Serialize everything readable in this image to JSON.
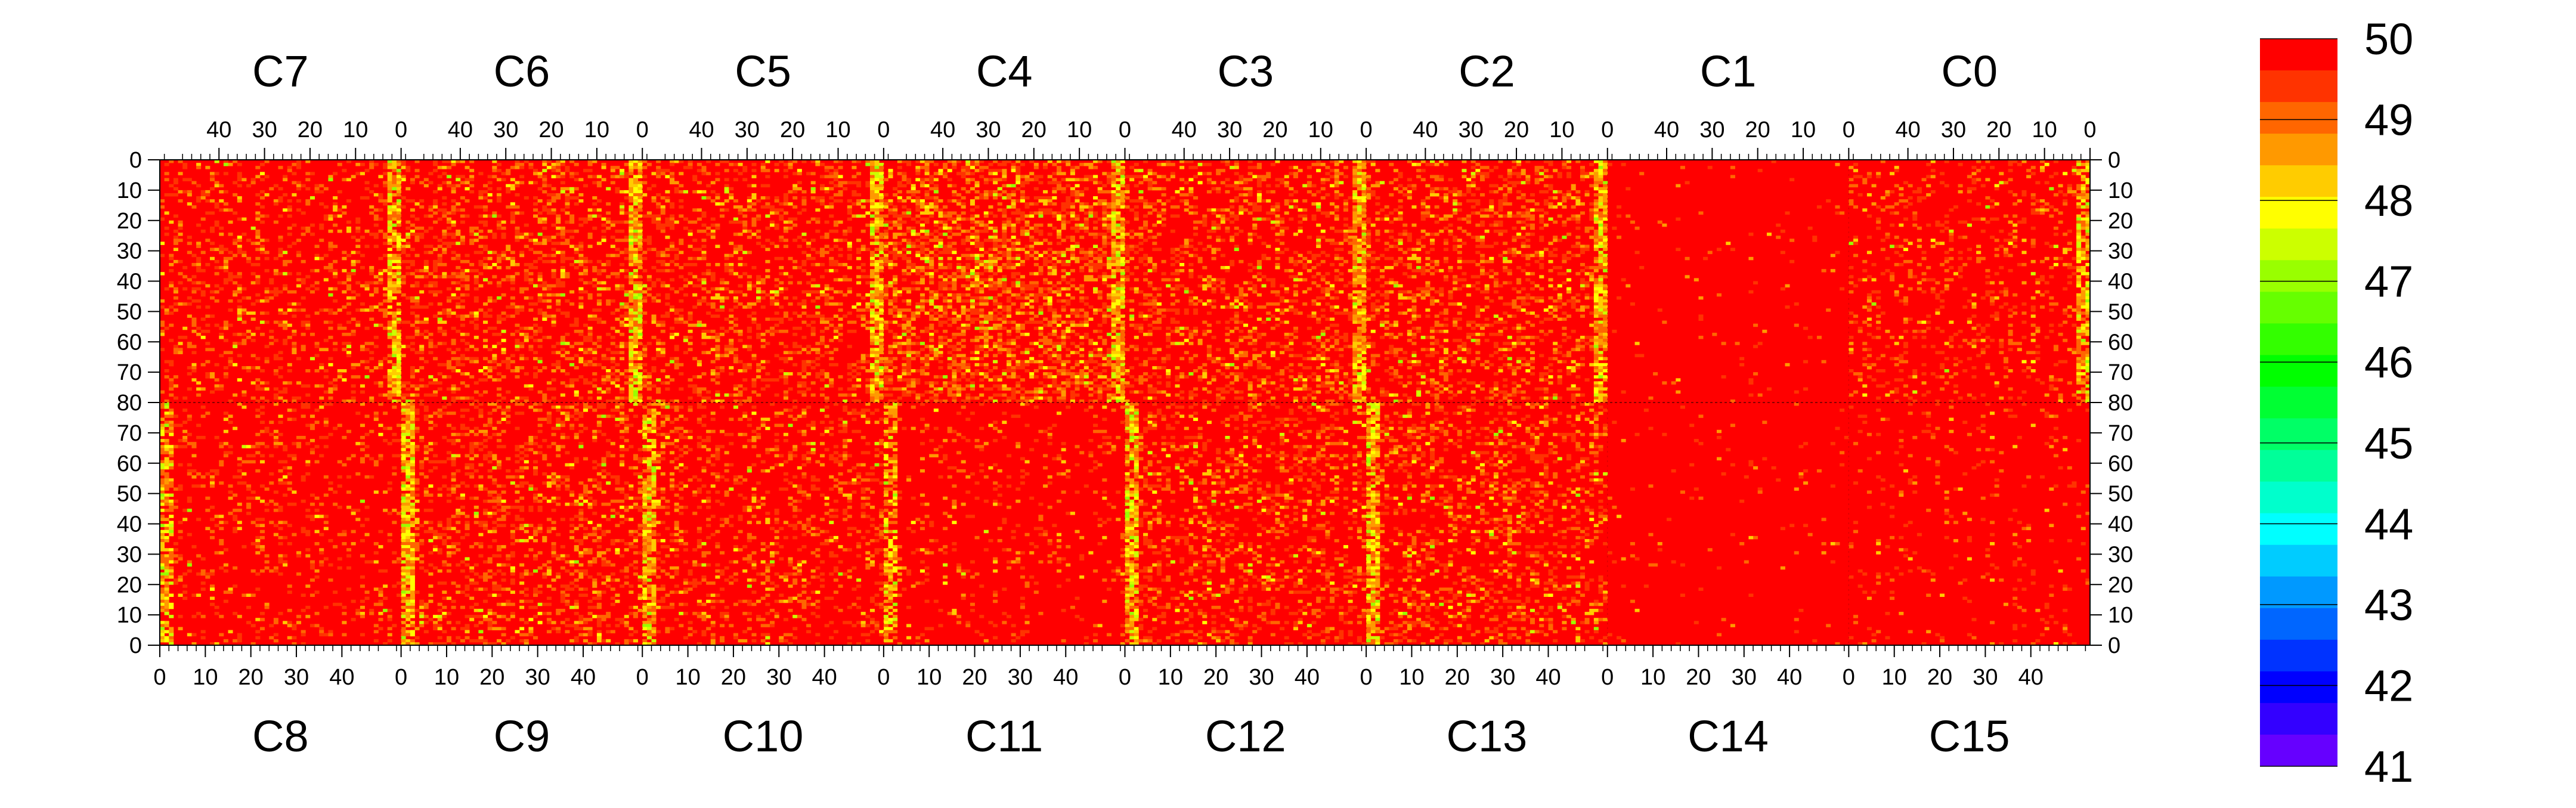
{
  "chart_data": {
    "type": "heatmap",
    "title": "",
    "zlim": [
      41,
      50
    ],
    "colorbar": {
      "tick_labels": [
        "50",
        "49",
        "48",
        "47",
        "46",
        "45",
        "44",
        "43",
        "42",
        "41"
      ],
      "colors": [
        "#ff0000",
        "#ff3300",
        "#ff6600",
        "#ff9900",
        "#ffcc00",
        "#ffff00",
        "#ccff00",
        "#99ff00",
        "#66ff00",
        "#33ff00",
        "#00ff00",
        "#00ff33",
        "#00ff66",
        "#00ff99",
        "#00ffcc",
        "#00ffff",
        "#00ccff",
        "#0099ff",
        "#0066ff",
        "#0033ff",
        "#0000ff",
        "#3300ff",
        "#6600ff"
      ]
    },
    "top_modules": [
      "C7",
      "C6",
      "C5",
      "C4",
      "C3",
      "C2",
      "C1",
      "C0"
    ],
    "bottom_modules": [
      "C8",
      "C9",
      "C10",
      "C11",
      "C12",
      "C13",
      "C14",
      "C15"
    ],
    "top_column_ticks": [
      "40",
      "30",
      "20",
      "10",
      "0"
    ],
    "bottom_column_ticks": [
      "0",
      "10",
      "20",
      "30",
      "40"
    ],
    "row_ticks_top_half": [
      "0",
      "10",
      "20",
      "30",
      "40",
      "50",
      "60",
      "70",
      "80"
    ],
    "row_ticks_bottom_half": [
      "70",
      "60",
      "50",
      "40",
      "30",
      "20",
      "10",
      "0"
    ],
    "xlim_per_module": [
      0,
      53
    ],
    "ylim_per_half": [
      0,
      80
    ],
    "module_stats": {
      "C7": {
        "red_fraction": 0.78,
        "edge_yellow_at_col0": true
      },
      "C6": {
        "red_fraction": 0.7,
        "edge_yellow_at_col0": true
      },
      "C5": {
        "red_fraction": 0.72,
        "edge_yellow_at_col0": true
      },
      "C4": {
        "red_fraction": 0.55,
        "edge_yellow_at_col0": true
      },
      "C3": {
        "red_fraction": 0.72,
        "edge_yellow_at_col0": true
      },
      "C2": {
        "red_fraction": 0.7,
        "edge_yellow_at_col0": true
      },
      "C1": {
        "red_fraction": 0.97,
        "edge_yellow_at_col0": false
      },
      "C0": {
        "red_fraction": 0.83,
        "edge_yellow_at_col0": true
      },
      "C8": {
        "red_fraction": 0.85,
        "edge_yellow_at_col0": true
      },
      "C9": {
        "red_fraction": 0.72,
        "edge_yellow_at_col0": true
      },
      "C10": {
        "red_fraction": 0.78,
        "edge_yellow_at_col0": true
      },
      "C11": {
        "red_fraction": 0.9,
        "edge_yellow_at_col0": true
      },
      "C12": {
        "red_fraction": 0.75,
        "edge_yellow_at_col0": true
      },
      "C13": {
        "red_fraction": 0.74,
        "edge_yellow_at_col0": true
      },
      "C14": {
        "red_fraction": 0.98,
        "edge_yellow_at_col0": false
      },
      "C15": {
        "red_fraction": 0.93,
        "edge_yellow_at_col0": false
      }
    }
  }
}
